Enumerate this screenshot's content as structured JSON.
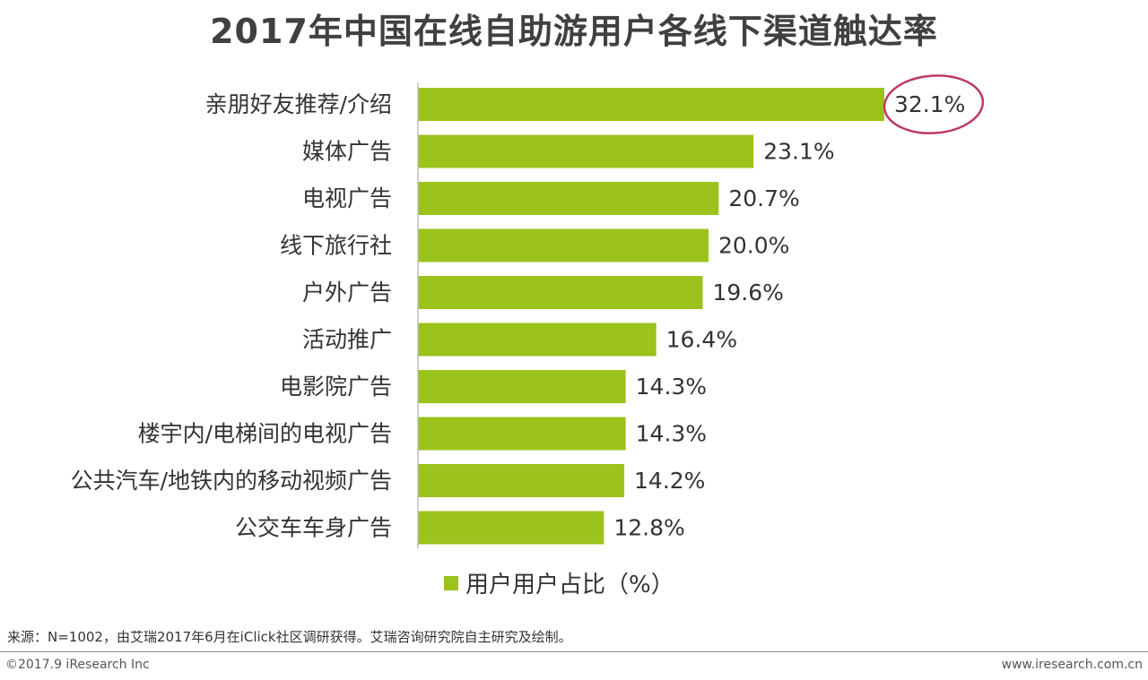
{
  "page": {
    "title": "2017年中国在线自助游用户各线下渠道触达率",
    "legend_label": "用户用户占比（%）",
    "source": "来源：N=1002，由艾瑞2017年6月在iClick社区调研获得。艾瑞咨询研究院自主研究及绘制。",
    "copyright": "©2017.9 iResearch Inc",
    "website": "www.iresearch.com.cn"
  },
  "colors": {
    "bar": "#9bc31c",
    "highlight_circle": "#c0395f",
    "axis": "#bfbfbf"
  },
  "chart_data": {
    "type": "bar",
    "orientation": "horizontal",
    "title": "2017年中国在线自助游用户各线下渠道触达率",
    "categories": [
      "亲朋好友推荐/介绍",
      "媒体广告",
      "电视广告",
      "线下旅行社",
      "户外广告",
      "活动推广",
      "电影院广告",
      "楼宇内/电梯间的电视广告",
      "公共汽车/地铁内的移动视频广告",
      "公交车车身广告"
    ],
    "series": [
      {
        "name": "用户用户占比（%）",
        "values": [
          32.1,
          23.1,
          20.7,
          20.0,
          19.6,
          16.4,
          14.3,
          14.3,
          14.2,
          12.8
        ]
      }
    ],
    "value_labels": [
      "32.1%",
      "23.1%",
      "20.7%",
      "20.0%",
      "19.6%",
      "16.4%",
      "14.3%",
      "14.3%",
      "14.2%",
      "12.8%"
    ],
    "highlighted_category": "亲朋好友推荐/介绍",
    "legend": "bottom",
    "grid": false
  }
}
